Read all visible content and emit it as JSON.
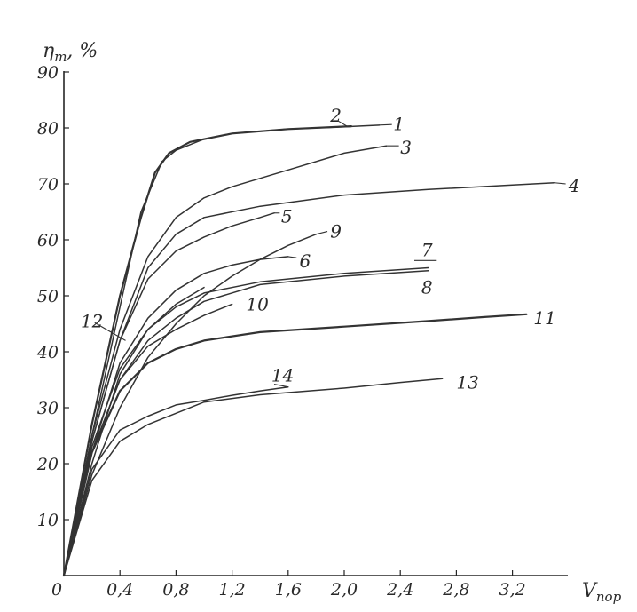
{
  "chart_data": {
    "type": "line",
    "title": "",
    "ylabel": {
      "main": "η",
      "sub": "т",
      "unit": ", %"
    },
    "xlabel": {
      "main": "V",
      "sub": "пор"
    },
    "xlim": [
      0,
      3.6
    ],
    "ylim": [
      0,
      90
    ],
    "x_ticks": [
      {
        "value": 0,
        "label": "0"
      },
      {
        "value": 0.4,
        "label": "0,4"
      },
      {
        "value": 0.8,
        "label": "0,8"
      },
      {
        "value": 1.2,
        "label": "1,2"
      },
      {
        "value": 1.6,
        "label": "1,6"
      },
      {
        "value": 2.0,
        "label": "2,0"
      },
      {
        "value": 2.4,
        "label": "2,4"
      },
      {
        "value": 2.8,
        "label": "2,8"
      },
      {
        "value": 3.2,
        "label": "3,2"
      }
    ],
    "y_ticks": [
      {
        "value": 10,
        "label": "10"
      },
      {
        "value": 20,
        "label": "20"
      },
      {
        "value": 30,
        "label": "30"
      },
      {
        "value": 40,
        "label": "40"
      },
      {
        "value": 50,
        "label": "50"
      },
      {
        "value": 60,
        "label": "60"
      },
      {
        "value": 70,
        "label": "70"
      },
      {
        "value": 80,
        "label": "80"
      },
      {
        "value": 90,
        "label": "90"
      }
    ],
    "grid": false,
    "legend": "none",
    "series": [
      {
        "label": "1",
        "x": [
          0,
          0.2,
          0.4,
          0.55,
          0.7,
          0.8,
          1.0,
          1.2,
          1.6,
          2.0,
          2.25
        ],
        "y": [
          0,
          25,
          48,
          65,
          74,
          76,
          78,
          79,
          79.8,
          80.2,
          80.5
        ]
      },
      {
        "label": "2",
        "x": [
          0,
          0.2,
          0.4,
          0.55,
          0.65,
          0.75,
          0.9,
          1.2,
          1.6,
          2.05
        ],
        "y": [
          0,
          27,
          50,
          64,
          72,
          75.5,
          77.5,
          79,
          79.8,
          80.3
        ]
      },
      {
        "label": "3",
        "x": [
          0,
          0.2,
          0.4,
          0.6,
          0.8,
          1.0,
          1.2,
          1.6,
          2.0,
          2.3
        ],
        "y": [
          0,
          25,
          44,
          57,
          64,
          67.5,
          69.5,
          72.5,
          75.5,
          76.8
        ]
      },
      {
        "label": "4",
        "x": [
          0,
          0.2,
          0.4,
          0.6,
          0.8,
          1.0,
          1.4,
          2.0,
          2.6,
          3.2,
          3.5
        ],
        "y": [
          0,
          24,
          42,
          55,
          61,
          64,
          66,
          68,
          69,
          69.8,
          70.2
        ]
      },
      {
        "label": "5",
        "x": [
          0,
          0.2,
          0.4,
          0.6,
          0.8,
          1.0,
          1.2,
          1.4,
          1.5
        ],
        "y": [
          0,
          24,
          42,
          53,
          58,
          60.5,
          62.5,
          64,
          64.8
        ]
      },
      {
        "label": "6",
        "x": [
          0,
          0.2,
          0.4,
          0.6,
          0.8,
          1.0,
          1.2,
          1.4,
          1.6
        ],
        "y": [
          0,
          22,
          38,
          46,
          51,
          54,
          55.5,
          56.5,
          57
        ]
      },
      {
        "label": "7",
        "x": [
          0,
          0.2,
          0.4,
          0.6,
          0.8,
          1.0,
          1.4,
          2.0,
          2.6
        ],
        "y": [
          0,
          23,
          37,
          44,
          48,
          50.5,
          52.5,
          54,
          55
        ]
      },
      {
        "label": "8",
        "x": [
          0,
          0.2,
          0.4,
          0.6,
          0.8,
          1.0,
          1.4,
          2.0,
          2.6
        ],
        "y": [
          0,
          22,
          35,
          42,
          46,
          49,
          52,
          53.5,
          54.5
        ]
      },
      {
        "label": "9",
        "x": [
          0,
          0.2,
          0.4,
          0.6,
          0.8,
          1.0,
          1.2,
          1.4,
          1.6,
          1.8
        ],
        "y": [
          0,
          18,
          30,
          39,
          45,
          50,
          53.5,
          56.5,
          59,
          61
        ]
      },
      {
        "label": "10",
        "x": [
          0,
          0.2,
          0.4,
          0.6,
          0.8,
          1.0,
          1.2
        ],
        "y": [
          0,
          22,
          35,
          41,
          44,
          46.5,
          48.5
        ]
      },
      {
        "label": "11",
        "x": [
          0,
          0.2,
          0.4,
          0.6,
          0.8,
          1.0,
          1.4,
          2.0,
          2.6,
          3.0,
          3.3
        ],
        "y": [
          0,
          22,
          33,
          38,
          40.5,
          42,
          43.5,
          44.5,
          45.5,
          46.2,
          46.7
        ]
      },
      {
        "label": "12",
        "x": [
          0,
          0.2,
          0.4,
          0.6,
          0.8,
          1.0
        ],
        "y": [
          0,
          20,
          36,
          44,
          48.5,
          51.5
        ]
      },
      {
        "label": "13",
        "x": [
          0,
          0.2,
          0.4,
          0.6,
          0.8,
          1.0,
          1.4,
          2.0,
          2.4,
          2.7
        ],
        "y": [
          0,
          17,
          24,
          27,
          29,
          31,
          32.3,
          33.5,
          34.5,
          35.2
        ]
      },
      {
        "label": "14",
        "x": [
          0,
          0.2,
          0.4,
          0.6,
          0.8,
          1.0,
          1.2,
          1.4,
          1.6
        ],
        "y": [
          0,
          19,
          26,
          28.5,
          30.5,
          31.3,
          32.2,
          33,
          33.7
        ]
      }
    ],
    "labels": [
      {
        "text": "1",
        "x": 2.35,
        "y": 80.7
      },
      {
        "text": "2",
        "x": 1.9,
        "y": 82.2
      },
      {
        "text": "3",
        "x": 2.4,
        "y": 76.5
      },
      {
        "text": "4",
        "x": 3.6,
        "y": 69.7
      },
      {
        "text": "5",
        "x": 1.55,
        "y": 64.2
      },
      {
        "text": "6",
        "x": 1.68,
        "y": 56.2
      },
      {
        "text": "7",
        "x": 2.55,
        "y": 58.2
      },
      {
        "text": "8",
        "x": 2.55,
        "y": 51.5
      },
      {
        "text": "9",
        "x": 1.9,
        "y": 61.5
      },
      {
        "text": "10",
        "x": 1.3,
        "y": 48.5
      },
      {
        "text": "11",
        "x": 3.35,
        "y": 46.0
      },
      {
        "text": "12",
        "x": 0.12,
        "y": 45.5
      },
      {
        "text": "13",
        "x": 2.8,
        "y": 34.5
      },
      {
        "text": "14",
        "x": 1.48,
        "y": 35.8
      }
    ]
  }
}
